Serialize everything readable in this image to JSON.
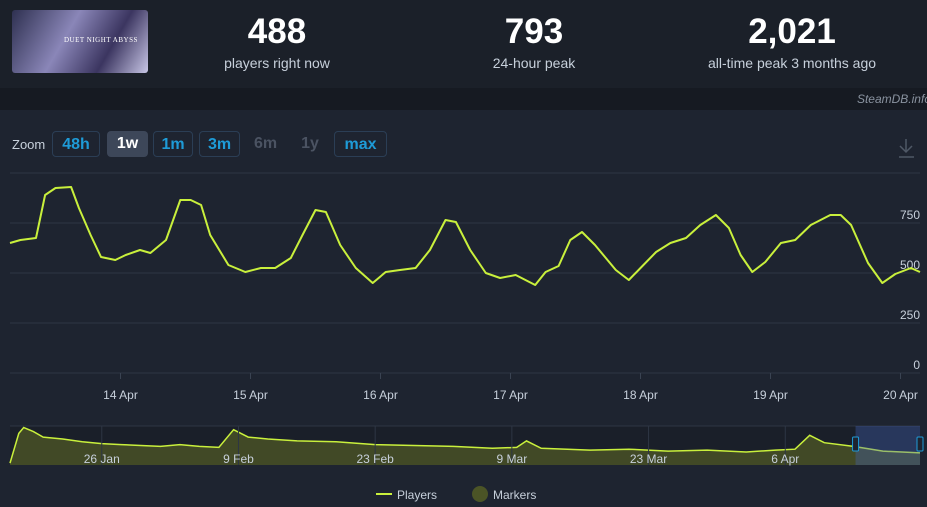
{
  "header": {
    "game_title": "DUET NIGHT ABYSS",
    "stats": [
      {
        "value": "488",
        "label": "players right now"
      },
      {
        "value": "793",
        "label": "24-hour peak"
      },
      {
        "value": "2,021",
        "label": "all-time peak 3 months ago"
      }
    ],
    "source": "SteamDB.info"
  },
  "zoom": {
    "label": "Zoom",
    "buttons": [
      {
        "text": "48h",
        "state": "enabled"
      },
      {
        "text": "1w",
        "state": "active"
      },
      {
        "text": "1m",
        "state": "enabled"
      },
      {
        "text": "3m",
        "state": "enabled"
      },
      {
        "text": "6m",
        "state": "disabled"
      },
      {
        "text": "1y",
        "state": "disabled"
      },
      {
        "text": "max",
        "state": "enabled"
      }
    ]
  },
  "chart_data": {
    "type": "line",
    "x": [
      13.15,
      13.23,
      13.35,
      13.42,
      13.5,
      13.62,
      13.68,
      13.77,
      13.85,
      13.96,
      14.04,
      14.15,
      14.23,
      14.35,
      14.46,
      14.54,
      14.62,
      14.69,
      14.83,
      14.96,
      15.08,
      15.19,
      15.31,
      15.4,
      15.5,
      15.58,
      15.69,
      15.81,
      15.94,
      16.04,
      16.15,
      16.27,
      16.38,
      16.5,
      16.58,
      16.69,
      16.81,
      16.92,
      17.04,
      17.19,
      17.27,
      17.37,
      17.46,
      17.55,
      17.65,
      17.81,
      17.91,
      18.0,
      18.12,
      18.23,
      18.35,
      18.46,
      18.58,
      18.68,
      18.77,
      18.86,
      18.96,
      19.08,
      19.19,
      19.31,
      19.46,
      19.54,
      19.62,
      19.75,
      19.86,
      19.96,
      20.08,
      20.15
    ],
    "series": [
      {
        "name": "Players",
        "color": "#c9f03c",
        "values": [
          650,
          665,
          675,
          890,
          925,
          930,
          825,
          690,
          580,
          565,
          590,
          615,
          600,
          665,
          865,
          865,
          840,
          690,
          540,
          505,
          525,
          525,
          575,
          690,
          815,
          805,
          640,
          525,
          450,
          505,
          515,
          525,
          615,
          765,
          755,
          615,
          500,
          475,
          490,
          440,
          505,
          535,
          665,
          705,
          640,
          515,
          465,
          525,
          605,
          650,
          675,
          740,
          790,
          725,
          590,
          505,
          555,
          650,
          665,
          740,
          790,
          790,
          740,
          550,
          450,
          495,
          525,
          505
        ]
      }
    ],
    "markers": {
      "name": "Markers",
      "color": "#4b5426"
    },
    "xlim": [
      13.15,
      20.15
    ],
    "xticks": [
      {
        "value": 14,
        "label": "14 Apr"
      },
      {
        "value": 15,
        "label": "15 Apr"
      },
      {
        "value": 16,
        "label": "16 Apr"
      },
      {
        "value": 17,
        "label": "17 Apr"
      },
      {
        "value": 18,
        "label": "18 Apr"
      },
      {
        "value": 19,
        "label": "19 Apr"
      },
      {
        "value": 20,
        "label": "20 Apr"
      }
    ],
    "ylim": [
      0,
      1000
    ],
    "yticks": [
      0,
      250,
      500,
      750
    ],
    "grid": true
  },
  "navigator": {
    "x": [
      16.6,
      17.5,
      18,
      19,
      20,
      22,
      24,
      26,
      28,
      30,
      32,
      34,
      36,
      38,
      39.5,
      41,
      43,
      46,
      50,
      54,
      58,
      62,
      66,
      68.5,
      69.5,
      71,
      76,
      80,
      84,
      88,
      92,
      95,
      97,
      98.5,
      100,
      103,
      106,
      109.8
    ],
    "values": [
      100,
      1700,
      2021,
      1800,
      1500,
      1400,
      1250,
      1150,
      1100,
      1050,
      1000,
      1100,
      1000,
      950,
      1900,
      1500,
      1400,
      1300,
      1250,
      1100,
      1050,
      1000,
      900,
      950,
      1300,
      900,
      800,
      850,
      750,
      800,
      700,
      800,
      850,
      1600,
      1200,
      1000,
      750,
      650
    ],
    "xlim": [
      16.6,
      109.8
    ],
    "ylim": [
      0,
      2100
    ],
    "xticks": [
      {
        "value": 26,
        "label": "26 Jan"
      },
      {
        "value": 40,
        "label": "9 Feb"
      },
      {
        "value": 54,
        "label": "23 Feb"
      },
      {
        "value": 68,
        "label": "9 Mar"
      },
      {
        "value": 82,
        "label": "23 Mar"
      },
      {
        "value": 96,
        "label": "6 Apr"
      }
    ],
    "window": [
      103.2,
      109.8
    ]
  }
}
